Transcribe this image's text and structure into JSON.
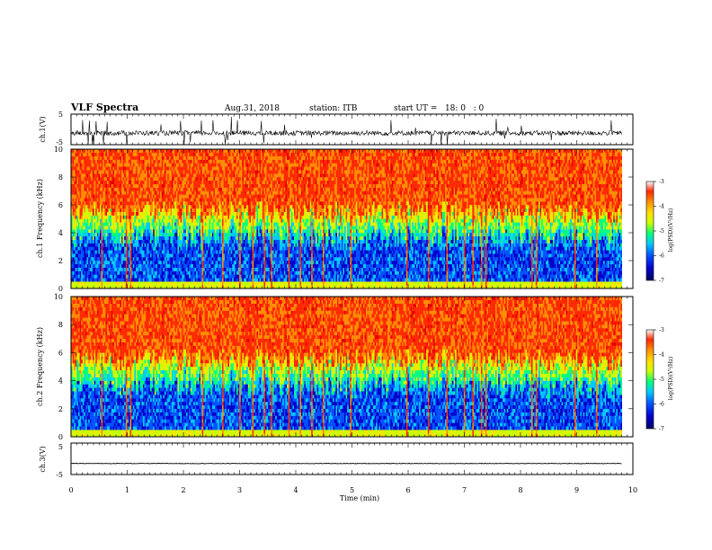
{
  "header": {
    "title": "VLF Spectra",
    "date": "Aug.31, 2018",
    "station": "station: ITB",
    "start_ut": "start UT =   18: 0   : 0"
  },
  "colors": {
    "scale": [
      "#000064",
      "#0000c8",
      "#0050ff",
      "#00c8ff",
      "#00ff80",
      "#c8ff00",
      "#ffe100",
      "#ff8c00",
      "#ff2800",
      "#e60000"
    ]
  },
  "chart_data": [
    {
      "type": "line",
      "ylabel": "ch.1(V)",
      "yticks": [
        "5",
        "-5"
      ],
      "xlim": [
        0,
        10
      ],
      "ylim": [
        -5,
        5
      ],
      "description_values": {
        "baseline": -1.2,
        "trace_end_min": 9.8
      }
    },
    {
      "type": "heatmap",
      "ylabel": "ch.1 Frequency (kHz)",
      "yticks": [
        "0",
        "2",
        "4",
        "6",
        "8",
        "10"
      ],
      "xlim": [
        0,
        10
      ],
      "ylim": [
        0,
        10
      ],
      "colorbar": {
        "label": "log(PSD)(V²/Hz)",
        "range": [
          -7,
          -3
        ],
        "ticks": [
          "-3",
          "-4",
          "-5",
          "-6",
          "-7"
        ]
      },
      "bands_khz": [
        {
          "range": [
            0,
            3.5
          ],
          "level": -6.5
        },
        {
          "range": [
            3.5,
            5.5
          ],
          "level": -5.0
        },
        {
          "range": [
            5.5,
            10
          ],
          "level": -3.6
        }
      ]
    },
    {
      "type": "heatmap",
      "ylabel": "ch.2 Frequency (kHz)",
      "yticks": [
        "0",
        "2",
        "4",
        "6",
        "8",
        "10"
      ],
      "xlim": [
        0,
        10
      ],
      "ylim": [
        0,
        10
      ],
      "colorbar": {
        "label": "log(PSD)(V²/Hz)",
        "range": [
          -7,
          -3
        ],
        "ticks": [
          "-3",
          "-4",
          "-5",
          "-6",
          "-7"
        ]
      },
      "bands_khz": [
        {
          "range": [
            0,
            3.5
          ],
          "level": -6.5
        },
        {
          "range": [
            3.5,
            5.5
          ],
          "level": -5.0
        },
        {
          "range": [
            5.5,
            10
          ],
          "level": -3.6
        }
      ]
    },
    {
      "type": "line",
      "ylabel": "ch.3(V)",
      "yticks": [
        "5",
        "-5"
      ],
      "xlim": [
        0,
        10
      ],
      "ylim": [
        -5,
        5
      ],
      "description_values": {
        "baseline": -1.5,
        "trace_end_min": 9.8
      }
    }
  ],
  "xaxis": {
    "label": "Time (min)",
    "ticks": [
      "0",
      "1",
      "2",
      "3",
      "4",
      "5",
      "6",
      "7",
      "8",
      "9",
      "10"
    ]
  }
}
